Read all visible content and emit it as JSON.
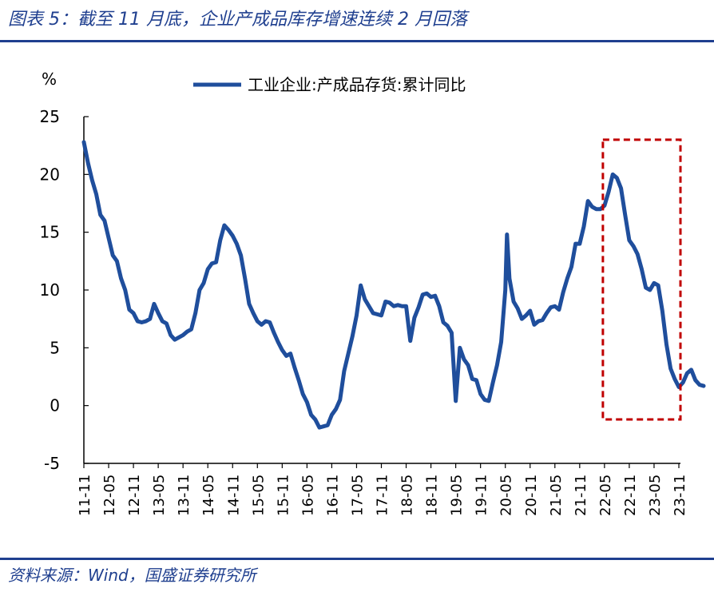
{
  "header": {
    "title": "图表 5：截至 11 月底，企业产成品库存增速连续 2 月回落"
  },
  "footer": {
    "source": "资料来源：Wind，国盛证券研究所"
  },
  "colors": {
    "series": "#1f4e9c",
    "accent_box": "#c00000",
    "title": "#1f3f8f"
  },
  "chart_data": {
    "type": "line",
    "ylabel": "%",
    "ylim": [
      -5,
      25
    ],
    "yticks": [
      -5,
      0,
      5,
      10,
      15,
      20,
      25
    ],
    "grid": false,
    "legend_position": "top",
    "xtick_labels": [
      "11-11",
      "12-05",
      "12-11",
      "13-05",
      "13-11",
      "14-05",
      "14-11",
      "15-05",
      "15-11",
      "16-05",
      "16-11",
      "17-05",
      "17-11",
      "18-05",
      "18-11",
      "19-05",
      "19-11",
      "20-05",
      "20-11",
      "21-05",
      "21-11",
      "22-05",
      "22-11",
      "23-05",
      "23-11"
    ],
    "highlight_box": {
      "x_from": "22-05",
      "x_to": "23-11",
      "y_from": -1.2,
      "y_to": 23
    },
    "series": [
      {
        "name": "工业企业:产成品存货:累计同比",
        "color": "#1f4e9c",
        "points": [
          [
            0,
            22.8
          ],
          [
            0.5,
            21.0
          ],
          [
            1.0,
            19.5
          ],
          [
            1.5,
            18.3
          ],
          [
            2.0,
            16.5
          ],
          [
            2.5,
            16.0
          ],
          [
            3.0,
            14.5
          ],
          [
            3.5,
            13.0
          ],
          [
            4.0,
            12.5
          ],
          [
            4.5,
            11.0
          ],
          [
            5.0,
            10.0
          ],
          [
            5.5,
            8.3
          ],
          [
            6.0,
            8.0
          ],
          [
            6.5,
            7.3
          ],
          [
            7.0,
            7.2
          ],
          [
            7.5,
            7.3
          ],
          [
            8.0,
            7.5
          ],
          [
            8.5,
            8.8
          ],
          [
            9.0,
            8.0
          ],
          [
            9.5,
            7.3
          ],
          [
            10.0,
            7.1
          ],
          [
            10.5,
            6.1
          ],
          [
            11.0,
            5.7
          ],
          [
            11.5,
            5.9
          ],
          [
            12.0,
            6.1
          ],
          [
            12.5,
            6.4
          ],
          [
            13.0,
            6.6
          ],
          [
            13.5,
            8.0
          ],
          [
            14.0,
            10.0
          ],
          [
            14.5,
            10.6
          ],
          [
            15.0,
            11.8
          ],
          [
            15.5,
            12.3
          ],
          [
            16.0,
            12.4
          ],
          [
            16.5,
            14.3
          ],
          [
            17.0,
            15.6
          ],
          [
            17.5,
            15.2
          ],
          [
            18.0,
            14.7
          ],
          [
            18.5,
            14.0
          ],
          [
            19.0,
            13.0
          ],
          [
            19.5,
            11.0
          ],
          [
            20.0,
            8.8
          ],
          [
            20.5,
            8.0
          ],
          [
            21.0,
            7.3
          ],
          [
            21.5,
            7.0
          ],
          [
            22.0,
            7.3
          ],
          [
            22.5,
            7.2
          ],
          [
            23.0,
            6.3
          ],
          [
            23.5,
            5.5
          ],
          [
            24.0,
            4.8
          ],
          [
            24.5,
            4.3
          ],
          [
            25.0,
            4.5
          ],
          [
            25.5,
            3.3
          ],
          [
            26.0,
            2.2
          ],
          [
            26.5,
            1.0
          ],
          [
            27.0,
            0.3
          ],
          [
            27.5,
            -0.8
          ],
          [
            28.0,
            -1.2
          ],
          [
            28.5,
            -1.9
          ],
          [
            29.0,
            -1.8
          ],
          [
            29.5,
            -1.7
          ],
          [
            30.0,
            -0.8
          ],
          [
            30.5,
            -0.3
          ],
          [
            31.0,
            0.5
          ],
          [
            31.5,
            3.0
          ],
          [
            32.0,
            4.5
          ],
          [
            32.5,
            6.0
          ],
          [
            33.0,
            7.8
          ],
          [
            33.5,
            10.4
          ],
          [
            34.0,
            9.2
          ],
          [
            34.5,
            8.6
          ],
          [
            35.0,
            8.0
          ],
          [
            35.5,
            7.9
          ],
          [
            36.0,
            7.8
          ],
          [
            36.5,
            9.0
          ],
          [
            37.0,
            8.9
          ],
          [
            37.5,
            8.6
          ],
          [
            38.0,
            8.7
          ],
          [
            38.5,
            8.6
          ],
          [
            39.0,
            8.6
          ],
          [
            39.5,
            5.6
          ],
          [
            40.0,
            7.6
          ],
          [
            40.5,
            8.5
          ],
          [
            41.0,
            9.6
          ],
          [
            41.5,
            9.7
          ],
          [
            42.0,
            9.4
          ],
          [
            42.5,
            9.5
          ],
          [
            43.0,
            8.6
          ],
          [
            43.5,
            7.2
          ],
          [
            44.0,
            6.9
          ],
          [
            44.5,
            6.3
          ],
          [
            45.0,
            0.4
          ],
          [
            45.5,
            5.0
          ],
          [
            46.0,
            4.0
          ],
          [
            46.5,
            3.5
          ],
          [
            47.0,
            2.3
          ],
          [
            47.5,
            2.2
          ],
          [
            48.0,
            1.0
          ],
          [
            48.5,
            0.5
          ],
          [
            49.0,
            0.4
          ],
          [
            49.5,
            2.0
          ],
          [
            50.0,
            3.5
          ],
          [
            50.5,
            5.5
          ],
          [
            51.0,
            10.0
          ],
          [
            51.2,
            14.8
          ],
          [
            51.5,
            11.0
          ],
          [
            52.0,
            9.0
          ],
          [
            52.5,
            8.4
          ],
          [
            53.0,
            7.5
          ],
          [
            53.5,
            7.8
          ],
          [
            54.0,
            8.2
          ],
          [
            54.5,
            7.0
          ],
          [
            55.0,
            7.3
          ],
          [
            55.5,
            7.4
          ],
          [
            56.0,
            8.0
          ],
          [
            56.5,
            8.5
          ],
          [
            57.0,
            8.6
          ],
          [
            57.5,
            8.3
          ],
          [
            58.0,
            9.8
          ],
          [
            58.5,
            11.0
          ],
          [
            59.0,
            12.0
          ],
          [
            59.5,
            14.0
          ],
          [
            60.0,
            14.0
          ],
          [
            60.5,
            15.5
          ],
          [
            61.0,
            17.7
          ],
          [
            61.5,
            17.2
          ],
          [
            62.0,
            17.0
          ],
          [
            62.5,
            17.0
          ],
          [
            63.0,
            17.3
          ],
          [
            63.5,
            18.5
          ],
          [
            64.0,
            20.0
          ],
          [
            64.5,
            19.7
          ],
          [
            65.0,
            18.8
          ],
          [
            65.5,
            16.5
          ],
          [
            66.0,
            14.3
          ],
          [
            66.5,
            13.8
          ],
          [
            67.0,
            13.1
          ],
          [
            67.5,
            11.8
          ],
          [
            68.0,
            10.2
          ],
          [
            68.5,
            10.0
          ],
          [
            69.0,
            10.6
          ],
          [
            69.5,
            10.4
          ],
          [
            70.0,
            8.2
          ],
          [
            70.5,
            5.3
          ],
          [
            71.0,
            3.2
          ],
          [
            71.5,
            2.3
          ],
          [
            72.0,
            1.6
          ],
          [
            72.5,
            2.0
          ],
          [
            73.0,
            2.8
          ],
          [
            73.5,
            3.1
          ],
          [
            74.0,
            2.2
          ],
          [
            74.5,
            1.8
          ],
          [
            75.0,
            1.7
          ]
        ]
      }
    ]
  }
}
